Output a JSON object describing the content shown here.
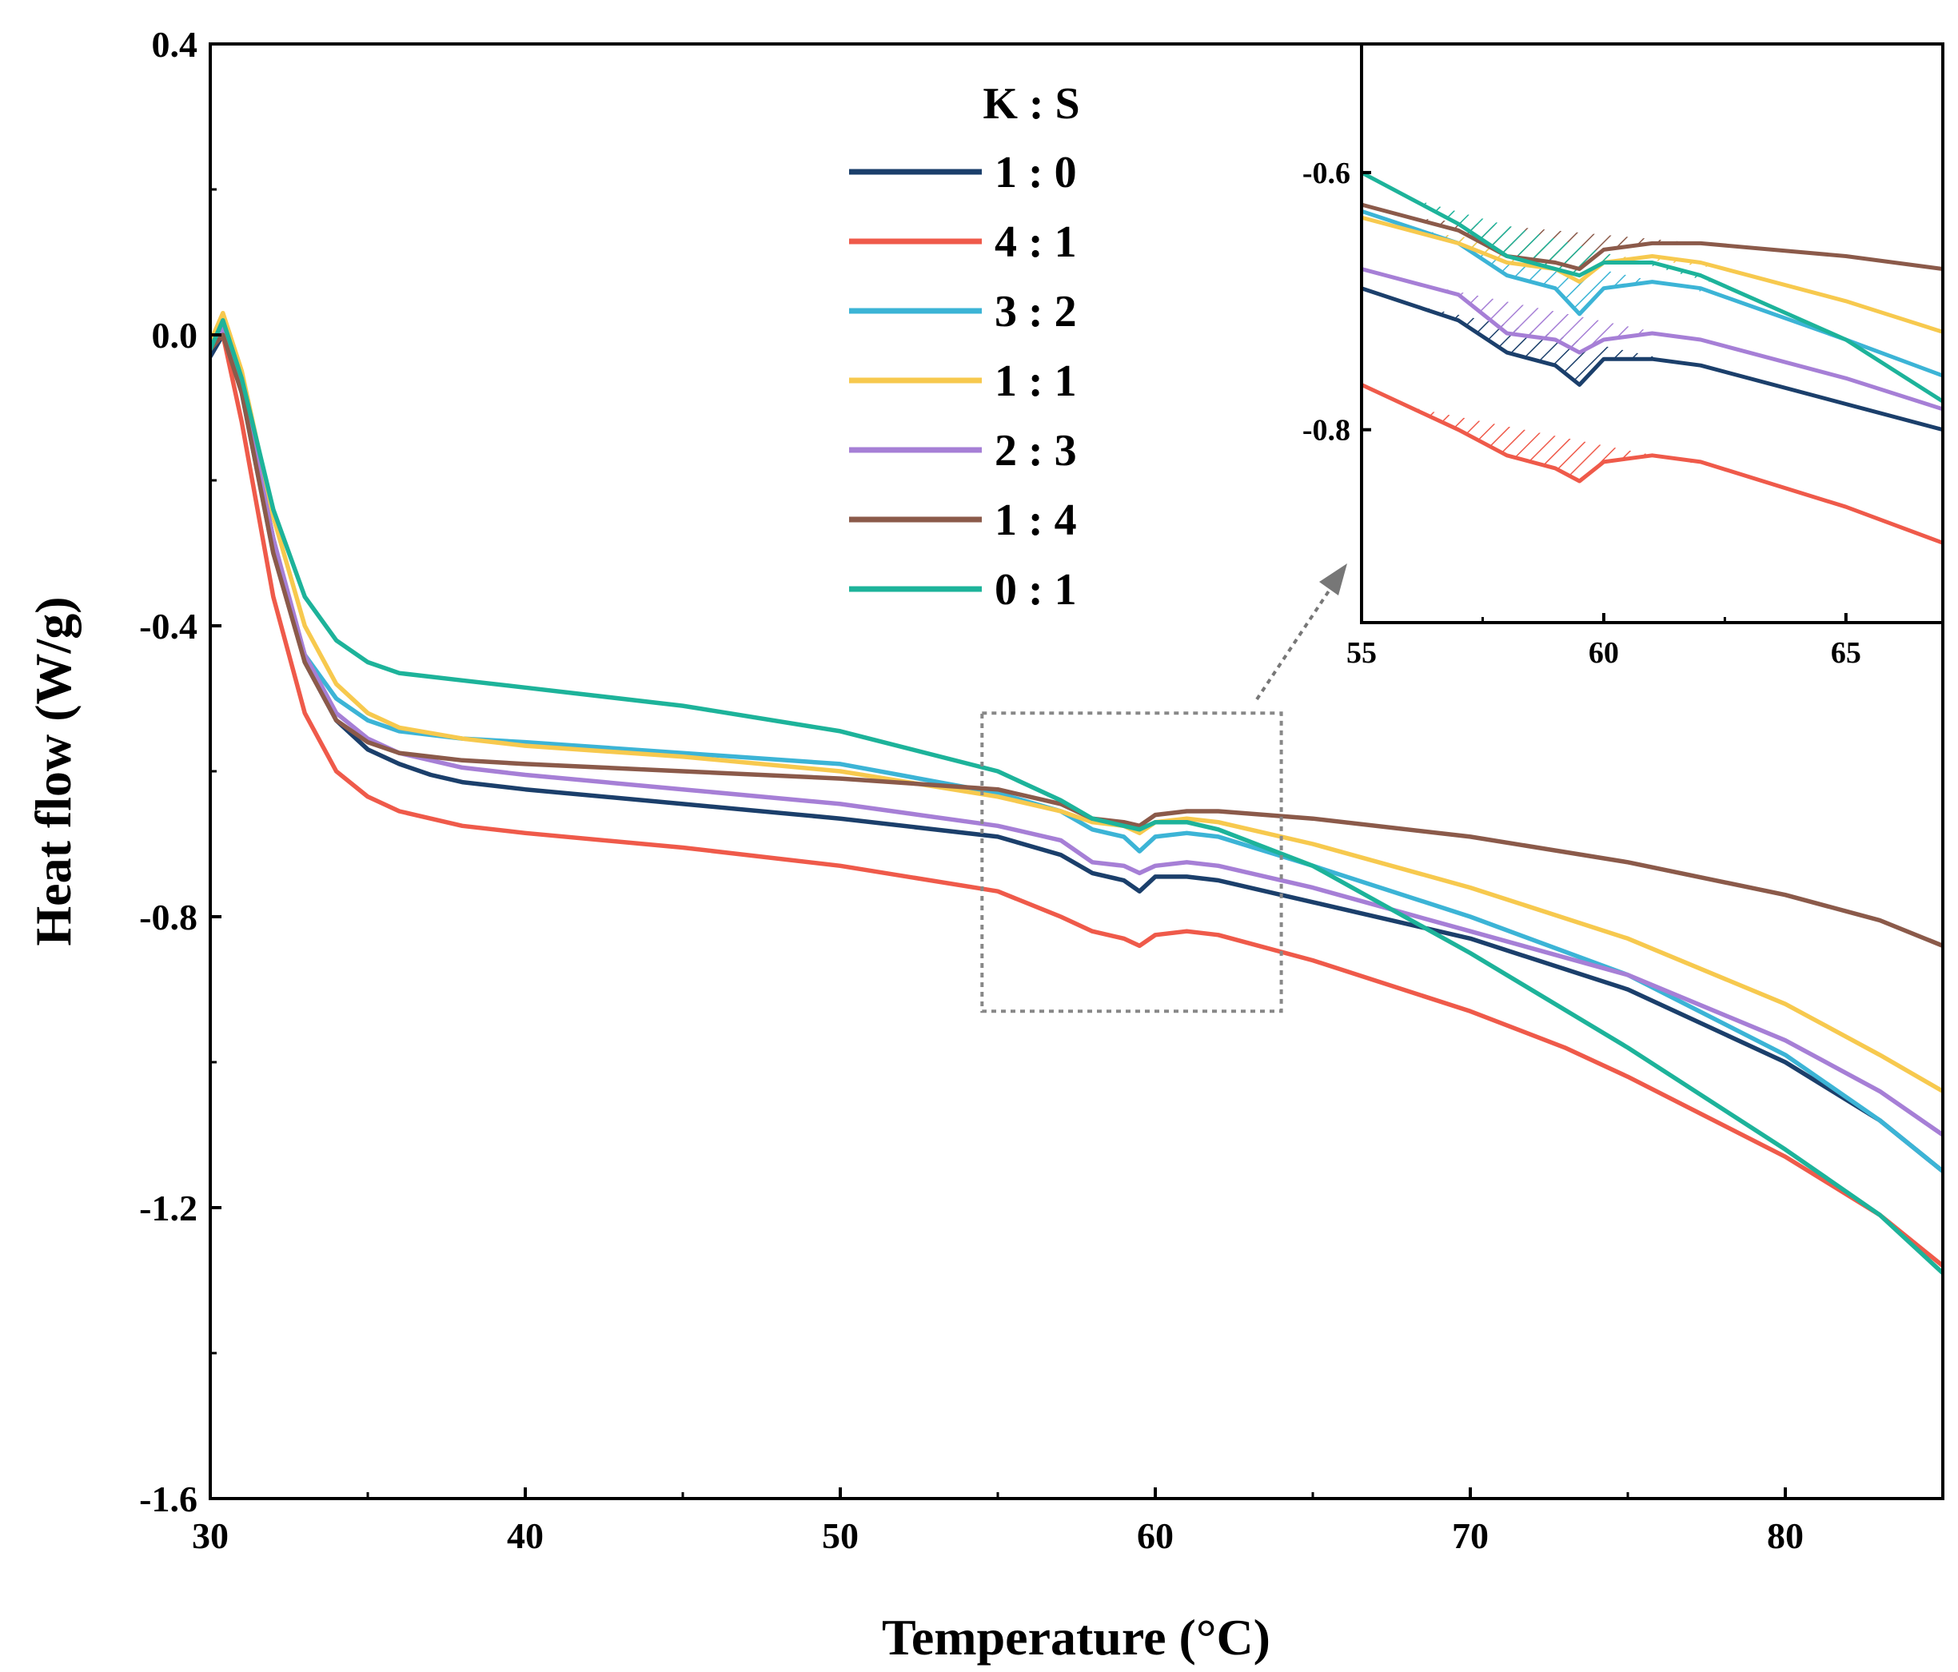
{
  "chart_data": {
    "type": "line",
    "xlabel": "Temperature (°C)",
    "ylabel": "Heat flow (W/g)",
    "xlim": [
      30,
      85
    ],
    "ylim": [
      -1.6,
      0.4
    ],
    "xticks": [
      "30",
      "40",
      "50",
      "60",
      "70",
      "80"
    ],
    "yticks": [
      "0.4",
      "0.0",
      "-0.4",
      "-0.8",
      "-1.2",
      "-1.6"
    ],
    "grid": false,
    "legend_title": "K : S",
    "legend_position": "top-center",
    "series": [
      {
        "name": "1 : 0",
        "color": "#1b3f6b",
        "points": [
          [
            30,
            -0.03
          ],
          [
            30.4,
            0.0
          ],
          [
            31,
            -0.07
          ],
          [
            32,
            -0.28
          ],
          [
            33,
            -0.45
          ],
          [
            34,
            -0.53
          ],
          [
            35,
            -0.57
          ],
          [
            36,
            -0.59
          ],
          [
            37,
            -0.605
          ],
          [
            38,
            -0.615
          ],
          [
            40,
            -0.625
          ],
          [
            45,
            -0.645
          ],
          [
            50,
            -0.665
          ],
          [
            55,
            -0.69
          ],
          [
            57,
            -0.715
          ],
          [
            58,
            -0.74
          ],
          [
            59,
            -0.75
          ],
          [
            59.5,
            -0.765
          ],
          [
            60,
            -0.745
          ],
          [
            61,
            -0.745
          ],
          [
            62,
            -0.75
          ],
          [
            65,
            -0.78
          ],
          [
            70,
            -0.83
          ],
          [
            75,
            -0.9
          ],
          [
            80,
            -1.0
          ],
          [
            83,
            -1.08
          ],
          [
            85,
            -1.15
          ]
        ]
      },
      {
        "name": "4 : 1",
        "color": "#ef5a4a",
        "points": [
          [
            30,
            -0.01
          ],
          [
            30.4,
            0.0
          ],
          [
            31,
            -0.12
          ],
          [
            32,
            -0.36
          ],
          [
            33,
            -0.52
          ],
          [
            34,
            -0.6
          ],
          [
            35,
            -0.635
          ],
          [
            36,
            -0.655
          ],
          [
            38,
            -0.675
          ],
          [
            40,
            -0.685
          ],
          [
            45,
            -0.705
          ],
          [
            50,
            -0.73
          ],
          [
            55,
            -0.765
          ],
          [
            57,
            -0.8
          ],
          [
            58,
            -0.82
          ],
          [
            59,
            -0.83
          ],
          [
            59.5,
            -0.84
          ],
          [
            60,
            -0.825
          ],
          [
            61,
            -0.82
          ],
          [
            62,
            -0.825
          ],
          [
            65,
            -0.86
          ],
          [
            70,
            -0.93
          ],
          [
            73,
            -0.98
          ],
          [
            74,
            -1.0
          ],
          [
            75,
            -1.02
          ],
          [
            80,
            -1.13
          ],
          [
            83,
            -1.21
          ],
          [
            85,
            -1.28
          ]
        ]
      },
      {
        "name": "3 : 2",
        "color": "#3cb4d6",
        "points": [
          [
            30,
            -0.02
          ],
          [
            30.4,
            0.02
          ],
          [
            31,
            -0.08
          ],
          [
            32,
            -0.3
          ],
          [
            33,
            -0.44
          ],
          [
            34,
            -0.5
          ],
          [
            35,
            -0.53
          ],
          [
            36,
            -0.545
          ],
          [
            38,
            -0.555
          ],
          [
            40,
            -0.56
          ],
          [
            45,
            -0.575
          ],
          [
            50,
            -0.59
          ],
          [
            55,
            -0.63
          ],
          [
            57,
            -0.655
          ],
          [
            58,
            -0.68
          ],
          [
            59,
            -0.69
          ],
          [
            59.5,
            -0.71
          ],
          [
            60,
            -0.69
          ],
          [
            61,
            -0.685
          ],
          [
            62,
            -0.69
          ],
          [
            65,
            -0.73
          ],
          [
            70,
            -0.8
          ],
          [
            75,
            -0.88
          ],
          [
            80,
            -0.99
          ],
          [
            83,
            -1.08
          ],
          [
            85,
            -1.15
          ]
        ]
      },
      {
        "name": "1 : 1",
        "color": "#f7c94e",
        "points": [
          [
            30,
            -0.01
          ],
          [
            30.4,
            0.03
          ],
          [
            31,
            -0.05
          ],
          [
            32,
            -0.25
          ],
          [
            33,
            -0.4
          ],
          [
            34,
            -0.48
          ],
          [
            35,
            -0.52
          ],
          [
            36,
            -0.54
          ],
          [
            38,
            -0.555
          ],
          [
            40,
            -0.565
          ],
          [
            45,
            -0.58
          ],
          [
            50,
            -0.6
          ],
          [
            55,
            -0.635
          ],
          [
            57,
            -0.655
          ],
          [
            58,
            -0.67
          ],
          [
            59,
            -0.675
          ],
          [
            59.5,
            -0.685
          ],
          [
            60,
            -0.67
          ],
          [
            61,
            -0.665
          ],
          [
            62,
            -0.67
          ],
          [
            65,
            -0.7
          ],
          [
            70,
            -0.76
          ],
          [
            75,
            -0.83
          ],
          [
            80,
            -0.92
          ],
          [
            83,
            -0.99
          ],
          [
            85,
            -1.04
          ]
        ]
      },
      {
        "name": "2 : 3",
        "color": "#a67fd6",
        "points": [
          [
            30,
            -0.02
          ],
          [
            30.4,
            0.01
          ],
          [
            31,
            -0.07
          ],
          [
            32,
            -0.28
          ],
          [
            33,
            -0.44
          ],
          [
            34,
            -0.52
          ],
          [
            35,
            -0.555
          ],
          [
            36,
            -0.575
          ],
          [
            38,
            -0.595
          ],
          [
            40,
            -0.605
          ],
          [
            45,
            -0.625
          ],
          [
            50,
            -0.645
          ],
          [
            55,
            -0.675
          ],
          [
            57,
            -0.695
          ],
          [
            58,
            -0.725
          ],
          [
            59,
            -0.73
          ],
          [
            59.5,
            -0.74
          ],
          [
            60,
            -0.73
          ],
          [
            61,
            -0.725
          ],
          [
            62,
            -0.73
          ],
          [
            65,
            -0.76
          ],
          [
            70,
            -0.82
          ],
          [
            75,
            -0.88
          ],
          [
            80,
            -0.97
          ],
          [
            83,
            -1.04
          ],
          [
            85,
            -1.1
          ]
        ]
      },
      {
        "name": "1 : 4",
        "color": "#8b5a4a",
        "points": [
          [
            30,
            -0.02
          ],
          [
            30.4,
            0.0
          ],
          [
            31,
            -0.08
          ],
          [
            32,
            -0.3
          ],
          [
            33,
            -0.45
          ],
          [
            34,
            -0.53
          ],
          [
            35,
            -0.56
          ],
          [
            36,
            -0.575
          ],
          [
            38,
            -0.585
          ],
          [
            40,
            -0.59
          ],
          [
            45,
            -0.6
          ],
          [
            50,
            -0.61
          ],
          [
            55,
            -0.625
          ],
          [
            57,
            -0.645
          ],
          [
            58,
            -0.665
          ],
          [
            59,
            -0.67
          ],
          [
            59.5,
            -0.675
          ],
          [
            60,
            -0.66
          ],
          [
            61,
            -0.655
          ],
          [
            62,
            -0.655
          ],
          [
            65,
            -0.665
          ],
          [
            70,
            -0.69
          ],
          [
            75,
            -0.725
          ],
          [
            80,
            -0.77
          ],
          [
            83,
            -0.805
          ],
          [
            85,
            -0.84
          ]
        ]
      },
      {
        "name": "0 : 1",
        "color": "#1db39a",
        "points": [
          [
            30,
            -0.02
          ],
          [
            30.4,
            0.02
          ],
          [
            31,
            -0.06
          ],
          [
            32,
            -0.24
          ],
          [
            33,
            -0.36
          ],
          [
            34,
            -0.42
          ],
          [
            35,
            -0.45
          ],
          [
            36,
            -0.465
          ],
          [
            38,
            -0.475
          ],
          [
            40,
            -0.485
          ],
          [
            45,
            -0.51
          ],
          [
            50,
            -0.545
          ],
          [
            55,
            -0.6
          ],
          [
            57,
            -0.64
          ],
          [
            58,
            -0.665
          ],
          [
            59,
            -0.675
          ],
          [
            59.5,
            -0.68
          ],
          [
            60,
            -0.67
          ],
          [
            61,
            -0.67
          ],
          [
            62,
            -0.68
          ],
          [
            65,
            -0.73
          ],
          [
            70,
            -0.85
          ],
          [
            75,
            -0.98
          ],
          [
            80,
            -1.12
          ],
          [
            83,
            -1.21
          ],
          [
            85,
            -1.29
          ]
        ]
      }
    ],
    "zoom_box": {
      "x": [
        54.5,
        64
      ],
      "y": [
        -0.93,
        -0.52
      ]
    },
    "inset": {
      "xlim": [
        55,
        67
      ],
      "ylim": [
        -0.95,
        -0.5
      ],
      "xticks": [
        "55",
        "60",
        "65"
      ],
      "yticks": [
        "-0.6",
        "-0.8"
      ],
      "hatched_peak_range": [
        56,
        62.5
      ]
    }
  }
}
